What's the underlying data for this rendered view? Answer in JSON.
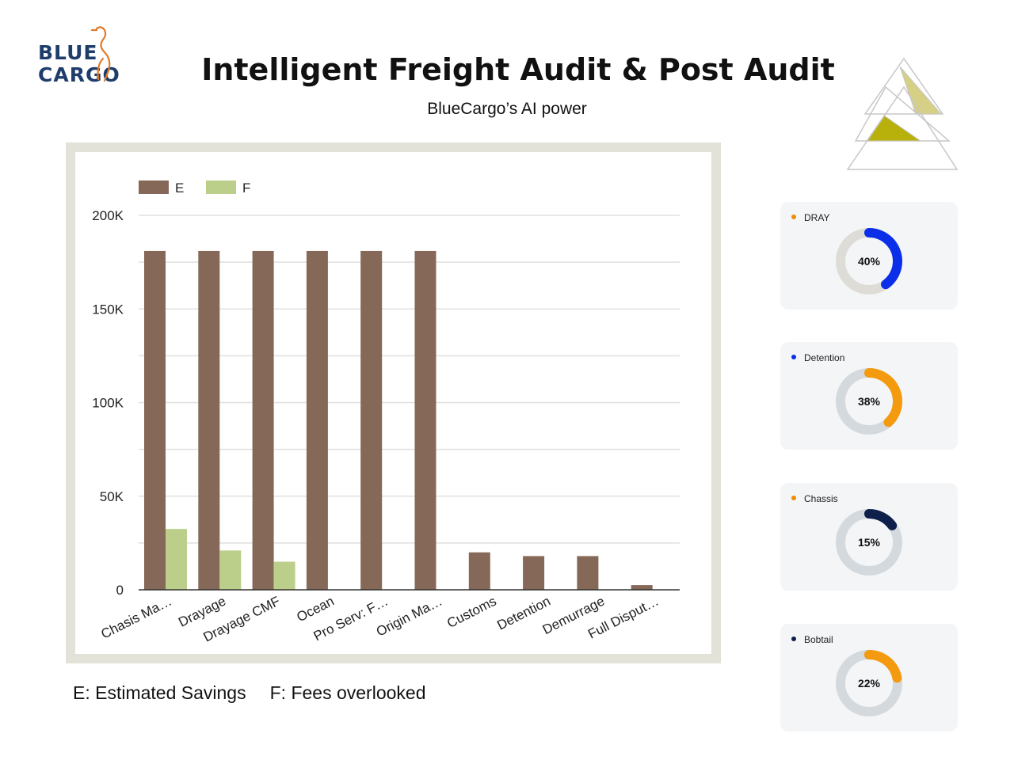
{
  "brand": {
    "line1": "BLUE",
    "line2": "CARGO"
  },
  "header": {
    "title": "Intelligent Freight Audit & Post Audit",
    "subtitle": "BlueCargo’s AI power"
  },
  "chart_data": {
    "type": "bar",
    "categories": [
      "Chasis Ma…",
      "Drayage",
      "Drayage CMF",
      "Ocean",
      "Pro Serv: F…",
      "Origin Ma…",
      "Customs",
      "Detention",
      "Demurrage",
      "Full Disput…"
    ],
    "series": [
      {
        "name": "E",
        "color": "#856858",
        "values": [
          181000,
          181000,
          181000,
          181000,
          181000,
          181000,
          20000,
          18000,
          18000,
          2500
        ]
      },
      {
        "name": "F",
        "color": "#bccf8a",
        "values": [
          32500,
          21000,
          15000,
          0,
          0,
          0,
          0,
          0,
          0,
          0
        ]
      }
    ],
    "ylim": [
      0,
      200000
    ],
    "yticks": [
      0,
      50000,
      100000,
      150000,
      200000
    ],
    "ytick_labels": [
      "0",
      "50K",
      "100K",
      "150K",
      "200K"
    ],
    "grid": true,
    "legend": "top-left"
  },
  "footnotes": {
    "e": "E: Estimated Savings",
    "f": "F: Fees overlooked"
  },
  "donuts": [
    {
      "label": "DRAY",
      "percent": 40,
      "percent_label": "40%",
      "dot_color": "#f08c00",
      "ring_color": "#0b2ee8",
      "track_color": "#dedcd6"
    },
    {
      "label": "Detention",
      "percent": 38,
      "percent_label": "38%",
      "dot_color": "#0b2ee8",
      "ring_color": "#f39a0e",
      "track_color": "#d3d9dd"
    },
    {
      "label": "Chassis",
      "percent": 15,
      "percent_label": "15%",
      "dot_color": "#f08c00",
      "ring_color": "#0f1f4b",
      "track_color": "#d3d9dd"
    },
    {
      "label": "Bobtail",
      "percent": 22,
      "percent_label": "22%",
      "dot_color": "#0f1f4b",
      "ring_color": "#f39a0e",
      "track_color": "#d3d9dd"
    }
  ]
}
